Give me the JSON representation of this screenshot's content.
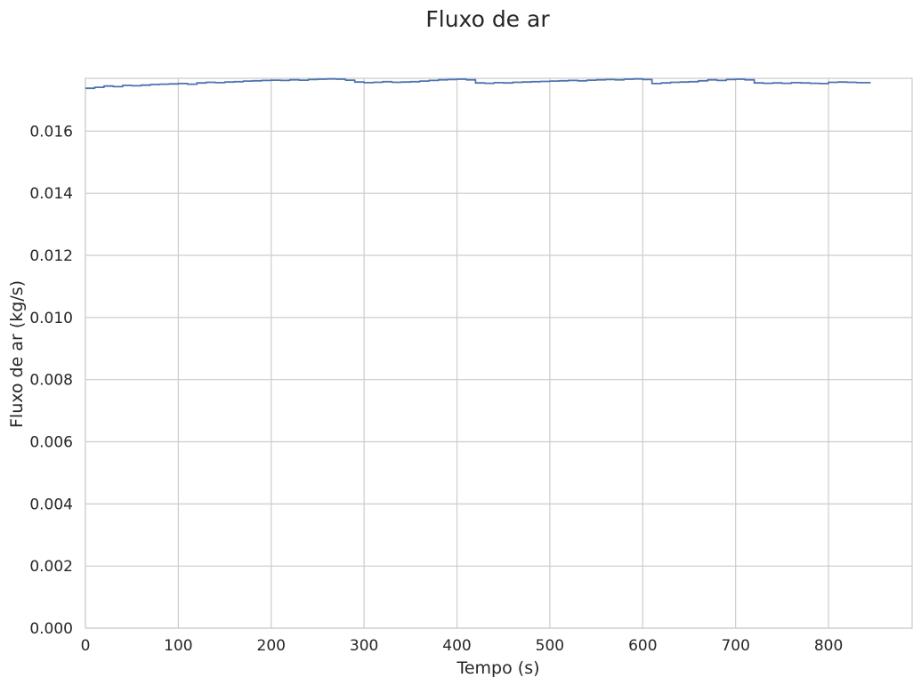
{
  "chart_data": {
    "type": "line",
    "title": "Fluxo de ar",
    "xlabel": "Tempo (s)",
    "ylabel": "Fluxo de ar (kg/s)",
    "xlim": [
      0,
      890
    ],
    "ylim": [
      0,
      0.0177
    ],
    "xticks": [
      0,
      100,
      200,
      300,
      400,
      500,
      600,
      700,
      800
    ],
    "xtick_labels": [
      "0",
      "100",
      "200",
      "300",
      "400",
      "500",
      "600",
      "700",
      "800"
    ],
    "yticks": [
      0,
      0.002,
      0.004,
      0.006,
      0.008,
      0.01,
      0.012,
      0.014,
      0.016
    ],
    "ytick_labels": [
      "0.000",
      "0.002",
      "0.004",
      "0.006",
      "0.008",
      "0.010",
      "0.012",
      "0.014",
      "0.016"
    ],
    "grid": true,
    "colors": {
      "line": "#4c72b0",
      "grid": "#cccccc",
      "spine": "#cccccc"
    },
    "series": [
      {
        "x": [
          0,
          10,
          20,
          30,
          40,
          50,
          60,
          70,
          80,
          90,
          100,
          110,
          120,
          130,
          140,
          150,
          160,
          170,
          180,
          190,
          200,
          210,
          220,
          230,
          240,
          250,
          260,
          270,
          280,
          290,
          300,
          310,
          320,
          330,
          340,
          350,
          360,
          370,
          380,
          390,
          400,
          410,
          420,
          430,
          440,
          450,
          460,
          470,
          480,
          490,
          500,
          510,
          520,
          530,
          540,
          550,
          560,
          570,
          580,
          590,
          600,
          610,
          620,
          630,
          640,
          650,
          660,
          670,
          680,
          690,
          700,
          710,
          720,
          730,
          740,
          750,
          760,
          770,
          780,
          790,
          800,
          810,
          820,
          830,
          845
        ],
        "values": [
          0.01738,
          0.01741,
          0.01745,
          0.01743,
          0.01747,
          0.01746,
          0.01748,
          0.0175,
          0.01751,
          0.01752,
          0.01753,
          0.01751,
          0.01755,
          0.01757,
          0.01756,
          0.01758,
          0.01759,
          0.01761,
          0.01762,
          0.01763,
          0.01764,
          0.01763,
          0.01765,
          0.01764,
          0.01766,
          0.01767,
          0.01768,
          0.01767,
          0.01764,
          0.01758,
          0.01756,
          0.01757,
          0.01759,
          0.01757,
          0.01758,
          0.01759,
          0.01761,
          0.01763,
          0.01765,
          0.01766,
          0.01767,
          0.01765,
          0.01755,
          0.01754,
          0.01756,
          0.01755,
          0.01757,
          0.01758,
          0.01759,
          0.0176,
          0.01761,
          0.01762,
          0.01763,
          0.01762,
          0.01764,
          0.01765,
          0.01766,
          0.01765,
          0.01767,
          0.01768,
          0.01766,
          0.01753,
          0.01755,
          0.01757,
          0.01758,
          0.01759,
          0.01762,
          0.01765,
          0.01763,
          0.01766,
          0.01767,
          0.01765,
          0.01755,
          0.01754,
          0.01755,
          0.01754,
          0.01756,
          0.01755,
          0.01754,
          0.01753,
          0.01757,
          0.01758,
          0.01757,
          0.01756,
          0.01757
        ]
      }
    ]
  }
}
